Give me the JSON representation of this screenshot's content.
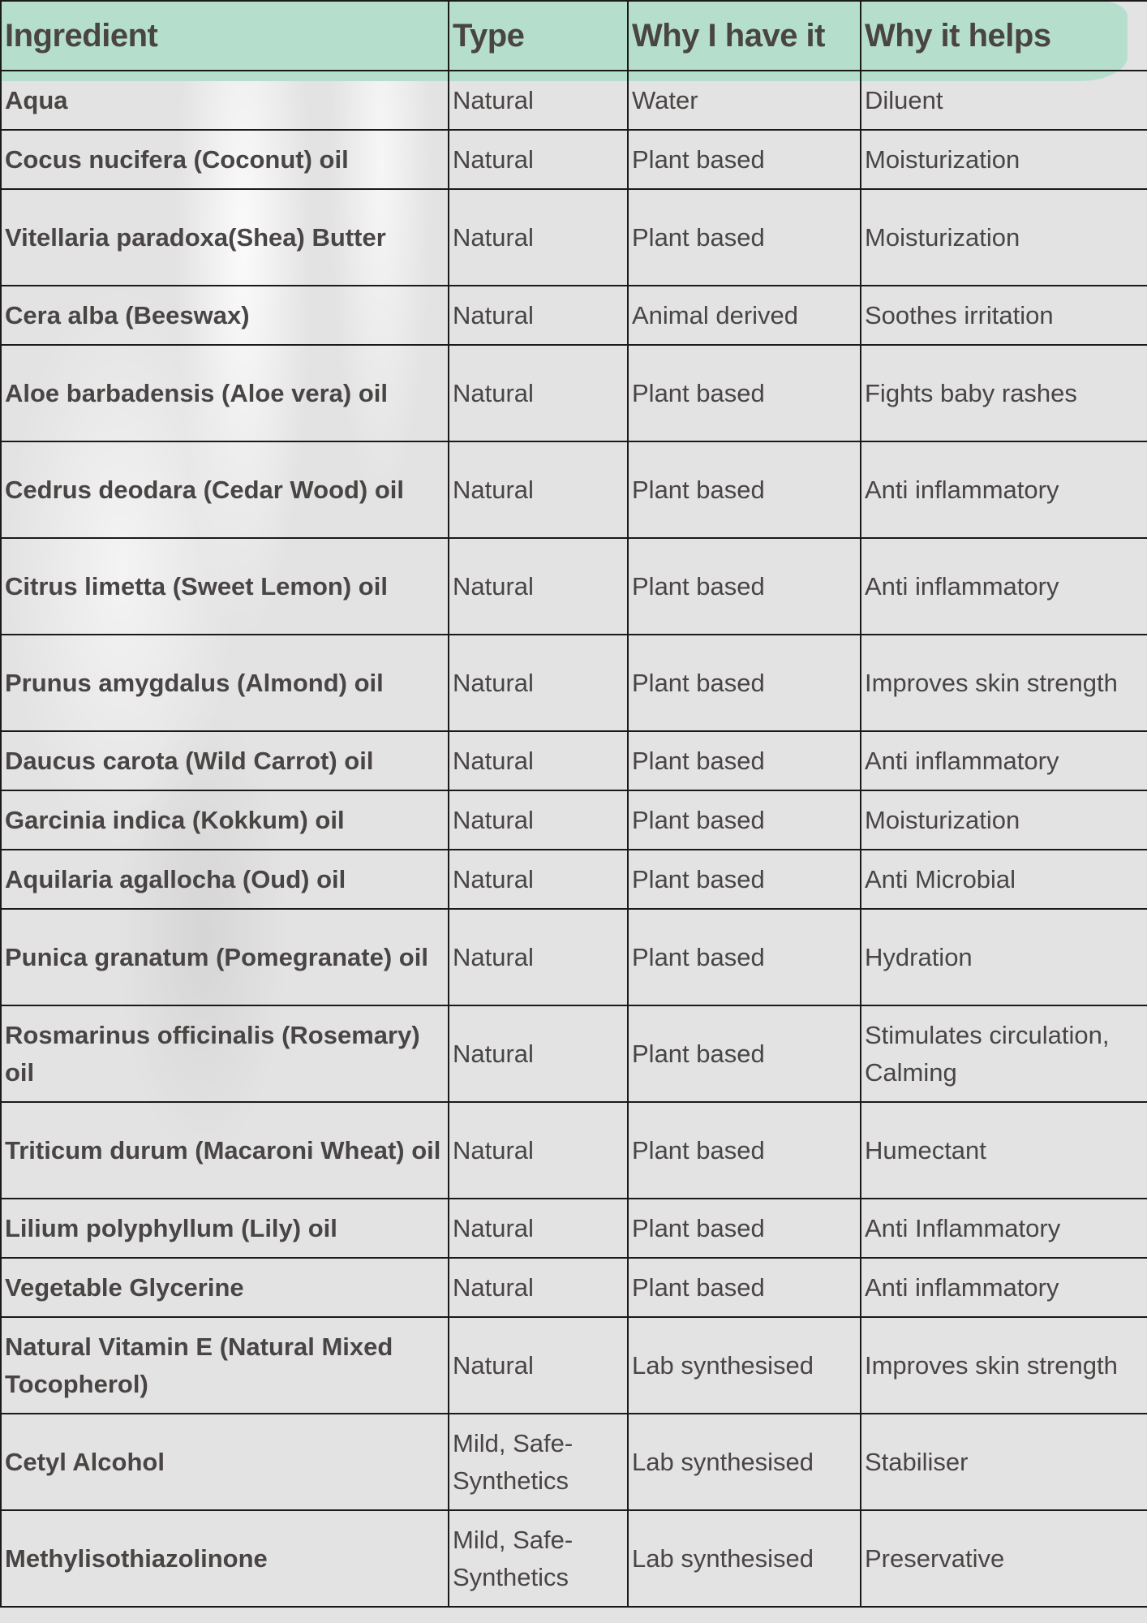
{
  "colors": {
    "header_brush": "#b5dfcc",
    "text": "#4a4545",
    "background": "#e3e3e3"
  },
  "headers": [
    "Ingredient",
    "Type",
    "Why I have it",
    "Why it helps"
  ],
  "rows": [
    {
      "ingredient": "Aqua",
      "type": "Natural",
      "why_have": "Water",
      "why_helps": "Diluent"
    },
    {
      "ingredient": "Cocus nucifera (Coconut) oil",
      "type": "Natural",
      "why_have": "Plant based",
      "why_helps": "Moisturization"
    },
    {
      "ingredient": "Vitellaria paradoxa(Shea) Butter",
      "type": "Natural",
      "why_have": "Plant based",
      "why_helps": "Moisturization"
    },
    {
      "ingredient": "Cera alba (Beeswax)",
      "type": "Natural",
      "why_have": "Animal derived",
      "why_helps": "Soothes irritation"
    },
    {
      "ingredient": "Aloe barbadensis (Aloe vera) oil",
      "type": "Natural",
      "why_have": "Plant based",
      "why_helps": "Fights baby rashes"
    },
    {
      "ingredient": "Cedrus deodara (Cedar Wood) oil",
      "type": "Natural",
      "why_have": "Plant based",
      "why_helps": "Anti inflammatory"
    },
    {
      "ingredient": "Citrus limetta (Sweet Lemon) oil",
      "type": "Natural",
      "why_have": "Plant based",
      "why_helps": "Anti inflammatory"
    },
    {
      "ingredient": "Prunus amygdalus (Almond) oil",
      "type": "Natural",
      "why_have": "Plant based",
      "why_helps": "Improves skin strength"
    },
    {
      "ingredient": "Daucus carota (Wild Carrot) oil",
      "type": "Natural",
      "why_have": "Plant based",
      "why_helps": "Anti inflammatory"
    },
    {
      "ingredient": "Garcinia indica (Kokkum) oil",
      "type": "Natural",
      "why_have": "Plant based",
      "why_helps": "Moisturization"
    },
    {
      "ingredient": "Aquilaria agallocha (Oud) oil",
      "type": "Natural",
      "why_have": "Plant based",
      "why_helps": "Anti Microbial"
    },
    {
      "ingredient": "Punica granatum (Pomegranate) oil",
      "type": "Natural",
      "why_have": "Plant based",
      "why_helps": "Hydration"
    },
    {
      "ingredient": "Rosmarinus officinalis (Rosemary) oil",
      "type": "Natural",
      "why_have": "Plant based",
      "why_helps": "Stimulates circulation, Calming"
    },
    {
      "ingredient": "Triticum  durum (Macaroni Wheat) oil",
      "type": "Natural",
      "why_have": "Plant based",
      "why_helps": "Humectant"
    },
    {
      "ingredient": "Lilium polyphyllum (Lily) oil",
      "type": "Natural",
      "why_have": "Plant based",
      "why_helps": "Anti Inflammatory"
    },
    {
      "ingredient": "Vegetable Glycerine",
      "type": "Natural",
      "why_have": "Plant based",
      "why_helps": "Anti inflammatory"
    },
    {
      "ingredient": "Natural Vitamin E (Natural Mixed Tocopherol)",
      "type": "Natural",
      "why_have": "Lab synthesised",
      "why_helps": "Improves skin strength"
    },
    {
      "ingredient": "Cetyl Alcohol",
      "type": "Mild, Safe-Synthetics",
      "why_have": "Lab synthesised",
      "why_helps": "Stabiliser"
    },
    {
      "ingredient": "Methylisothiazolinone",
      "type": "Mild, Safe-Synthetics",
      "why_have": "Lab synthesised",
      "why_helps": "Preservative"
    }
  ]
}
